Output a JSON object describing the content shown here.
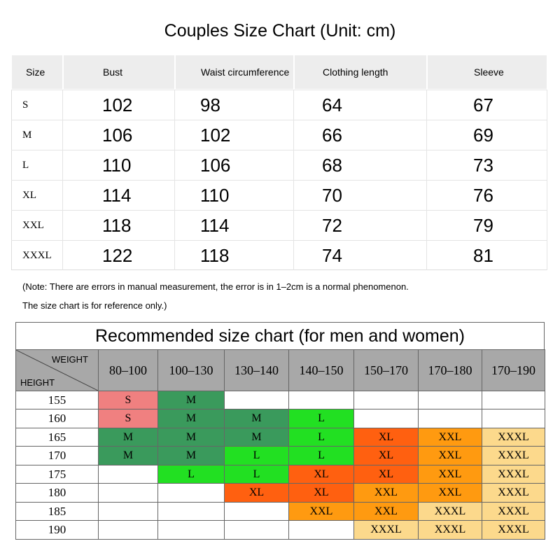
{
  "size_chart": {
    "title": "Couples Size Chart (Unit: cm)",
    "headers": [
      "Size",
      "Bust",
      "Waist circumference",
      "Clothing length",
      "Sleeve"
    ],
    "rows": [
      [
        "S",
        102,
        98,
        64,
        67
      ],
      [
        "M",
        106,
        102,
        66,
        69
      ],
      [
        "L",
        110,
        106,
        68,
        73
      ],
      [
        "XL",
        114,
        110,
        70,
        76
      ],
      [
        "XXL",
        118,
        114,
        72,
        79
      ],
      [
        "XXXL",
        122,
        118,
        74,
        81
      ]
    ]
  },
  "note": [
    "(Note: There are errors in manual measurement, the error is in 1–2cm is a normal phenomenon.",
    "The size chart is for reference only.)"
  ],
  "recommend": {
    "title": "Recommended size chart (for men and women)",
    "weight_label": "WEIGHT",
    "height_label": "HEIGHT",
    "weights": [
      "80–100",
      "100–130",
      "130–140",
      "140–150",
      "150–170",
      "170–180",
      "170–190"
    ],
    "size_colors": {
      "S": "#f08080",
      "M": "#3a9a5c",
      "L": "#22e022",
      "XL": "#ff6010",
      "XXL": "#ff9a10",
      "XXXL": "#fcd98c"
    },
    "rows": [
      {
        "height": 155,
        "cells": [
          "S",
          "M",
          null,
          null,
          null,
          null,
          null
        ]
      },
      {
        "height": 160,
        "cells": [
          "S",
          "M",
          "M",
          "L",
          null,
          null,
          null
        ]
      },
      {
        "height": 165,
        "cells": [
          "M",
          "M",
          "M",
          "L",
          "XL",
          "XXL",
          "XXXL"
        ]
      },
      {
        "height": 170,
        "cells": [
          "M",
          "M",
          "L",
          "L",
          "XL",
          "XXL",
          "XXXL"
        ]
      },
      {
        "height": 175,
        "cells": [
          null,
          "L",
          "L",
          "XL",
          "XL",
          "XXL",
          "XXXL"
        ]
      },
      {
        "height": 180,
        "cells": [
          null,
          null,
          "XL",
          "XL",
          "XXL",
          "XXL",
          "XXXL"
        ]
      },
      {
        "height": 185,
        "cells": [
          null,
          null,
          null,
          "XXL",
          "XXL",
          "XXXL",
          "XXXL"
        ]
      },
      {
        "height": 190,
        "cells": [
          null,
          null,
          null,
          null,
          "XXXL",
          "XXXL",
          "XXXL"
        ]
      }
    ]
  }
}
